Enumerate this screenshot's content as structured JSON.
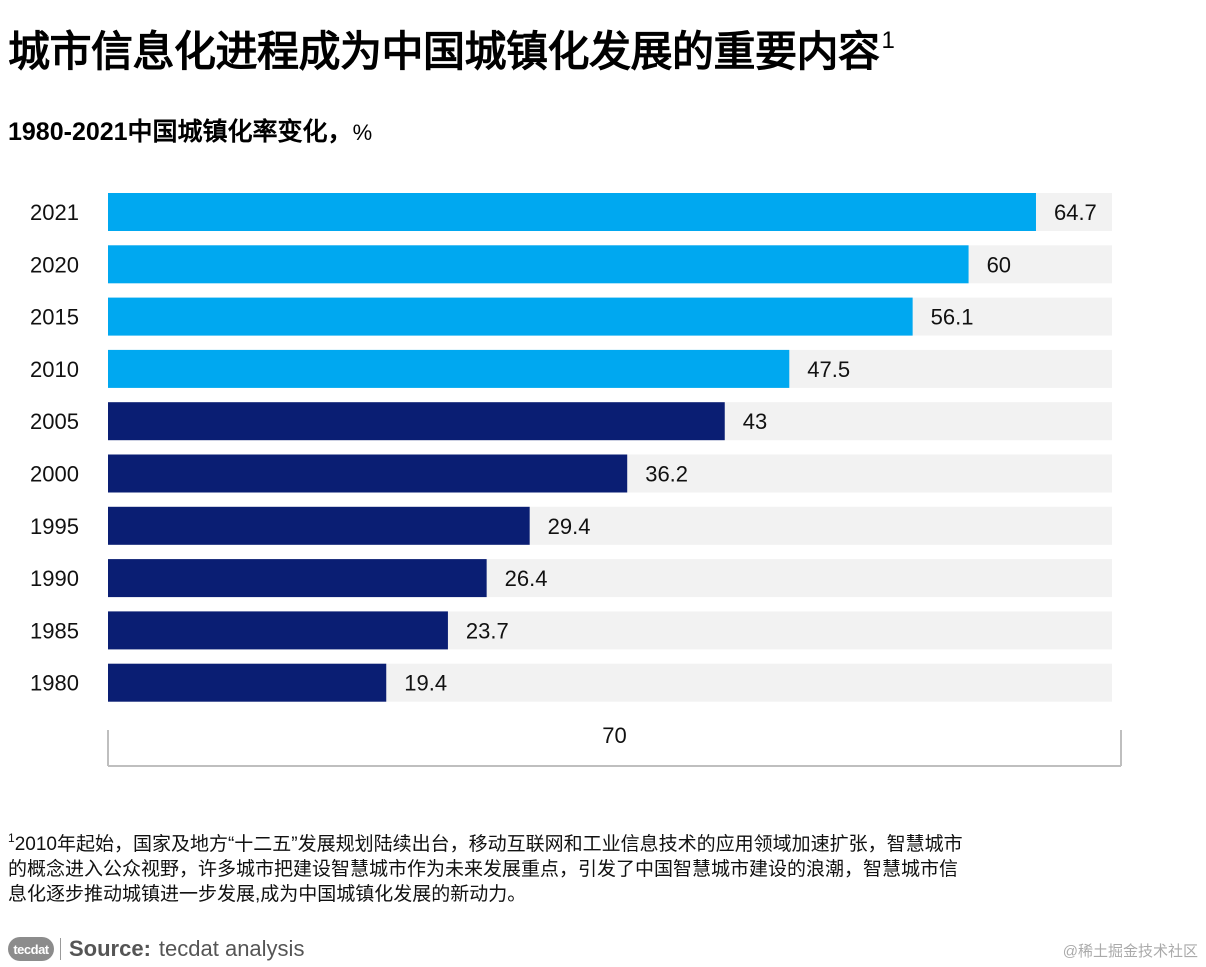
{
  "header": {
    "title": "城市信息化进程成为中国城镇化发展的重要内容",
    "title_footnote_mark": "1",
    "subtitle": "1980-2021中国城镇化率变化，",
    "subtitle_unit": "%"
  },
  "chart_data": {
    "type": "bar",
    "orientation": "horizontal",
    "categories": [
      "2021",
      "2020",
      "2015",
      "2010",
      "2005",
      "2000",
      "1995",
      "1990",
      "1985",
      "1980"
    ],
    "values": [
      64.7,
      60,
      56.1,
      47.5,
      43,
      36.2,
      29.4,
      26.4,
      23.7,
      19.4
    ],
    "data_labels": [
      "64.7",
      "60",
      "56.1",
      "47.5",
      "43",
      "36.2",
      "29.4",
      "26.4",
      "23.7",
      "19.4"
    ],
    "bar_colors": [
      "#00a8f0",
      "#00a8f0",
      "#00a8f0",
      "#00a8f0",
      "#0a1e73",
      "#0a1e73",
      "#0a1e73",
      "#0a1e73",
      "#0a1e73",
      "#0a1e73"
    ],
    "background_track_color": "#f2f2f2",
    "xlim": [
      0,
      70
    ],
    "x_tick_label": "70",
    "title": "",
    "xlabel": "",
    "ylabel": "",
    "grid": false,
    "legend": "none"
  },
  "footnote": {
    "mark": "1",
    "text": "2010年起始，国家及地方“十二五”发展规划陆续出台，移动互联网和工业信息技术的应用领域加速扩张，智慧城市\n的概念进入公众视野，许多城市把建设智慧城市作为未来发展重点，引发了中国智慧城市建设的浪潮，智慧城市信\n息化逐步推动城镇进一步发展,成为中国城镇化发展的新动力。"
  },
  "source": {
    "logo_text": "tecdat",
    "label": "Source:",
    "text": "tecdat analysis"
  },
  "watermark": "@稀土掘金技术社区"
}
